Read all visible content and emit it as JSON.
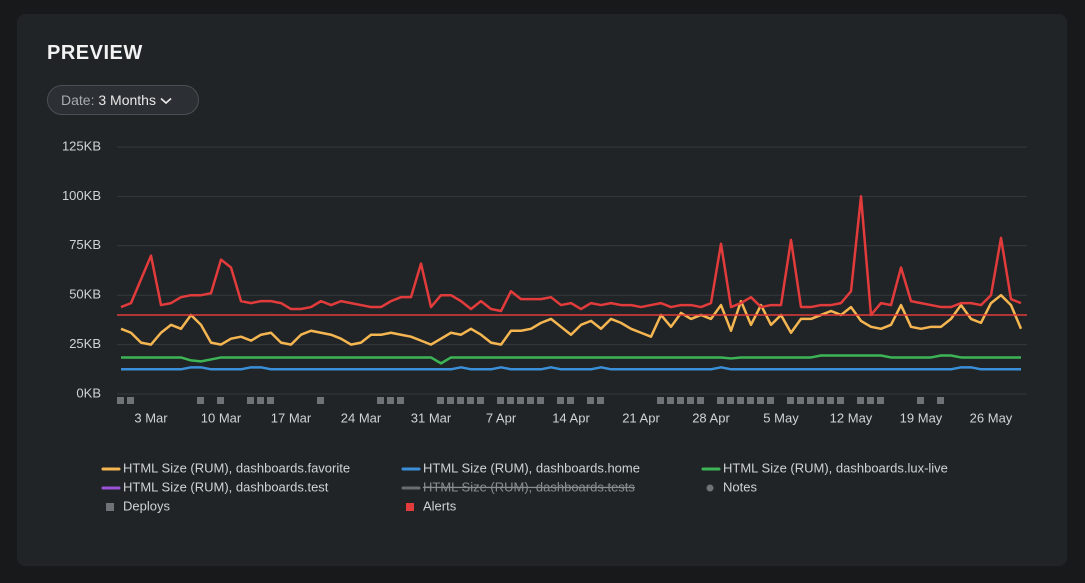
{
  "header": {
    "title": "PREVIEW",
    "date_label": "Date:",
    "date_value": "3 Months"
  },
  "chart_data": {
    "type": "line",
    "categories": [
      null,
      null,
      null,
      "3 Mar",
      null,
      null,
      null,
      null,
      null,
      null,
      "10 Mar",
      null,
      null,
      null,
      null,
      null,
      null,
      "17 Mar",
      null,
      null,
      null,
      null,
      null,
      null,
      "24 Mar",
      null,
      null,
      null,
      null,
      null,
      null,
      "31 Mar",
      null,
      null,
      null,
      null,
      null,
      null,
      "7 Apr",
      null,
      null,
      null,
      null,
      null,
      null,
      "14 Apr",
      null,
      null,
      null,
      null,
      null,
      null,
      "21 Apr",
      null,
      null,
      null,
      null,
      null,
      null,
      "28 Apr",
      null,
      null,
      null,
      null,
      null,
      null,
      "5 May",
      null,
      null,
      null,
      null,
      null,
      null,
      "12 May",
      null,
      null,
      null,
      null,
      null,
      null,
      "19 May",
      null,
      null,
      null,
      null,
      null,
      null,
      "26 May",
      null,
      null,
      null
    ],
    "ylim": [
      0,
      125
    ],
    "yticks": [
      {
        "value": 0,
        "label": "0KB"
      },
      {
        "value": 25,
        "label": "25KB"
      },
      {
        "value": 50,
        "label": "50KB"
      },
      {
        "value": 75,
        "label": "75KB"
      },
      {
        "value": 100,
        "label": "100KB"
      },
      {
        "value": 125,
        "label": "125KB"
      }
    ],
    "grid": true,
    "alert_threshold": 40,
    "alert_color": "#e23b3b",
    "series": [
      {
        "name": "HTML Size (RUM), dashboards.favorite",
        "color": "#f5b651",
        "values": [
          33,
          31,
          26,
          25,
          31,
          35,
          33,
          40,
          35,
          26,
          25,
          28,
          29,
          27,
          30,
          31,
          26,
          25,
          30,
          32,
          31,
          30,
          28,
          25,
          26,
          30,
          30,
          31,
          30,
          29,
          27,
          25,
          28,
          31,
          30,
          33,
          30,
          26,
          25,
          32,
          32,
          33,
          36,
          38,
          34,
          30,
          35,
          37,
          33,
          38,
          36,
          33,
          31,
          29,
          40,
          34,
          41,
          38,
          40,
          38,
          45,
          32,
          47,
          35,
          45,
          35,
          40,
          31,
          38,
          38,
          40,
          42,
          40,
          44,
          37,
          34,
          33,
          35,
          45,
          34,
          33,
          34,
          34,
          38,
          45,
          38,
          36,
          46,
          50,
          45,
          33
        ]
      },
      {
        "name": "HTML Size (RUM), dashboards.home",
        "color": "#3b8fd8",
        "values": [
          12.5,
          12.5,
          12.5,
          12.5,
          12.5,
          12.5,
          12.5,
          13.5,
          13.5,
          12.5,
          12.5,
          12.5,
          12.5,
          13.5,
          13.5,
          12.5,
          12.5,
          12.5,
          12.5,
          12.5,
          12.5,
          12.5,
          12.5,
          12.5,
          12.5,
          12.5,
          12.5,
          12.5,
          12.5,
          12.5,
          12.5,
          12.5,
          12.5,
          12.5,
          13.5,
          12.5,
          12.5,
          12.5,
          13.5,
          12.5,
          12.5,
          12.5,
          12.5,
          13.5,
          12.5,
          12.5,
          12.5,
          12.5,
          13.5,
          12.5,
          12.5,
          12.5,
          12.5,
          12.5,
          12.5,
          12.5,
          12.5,
          12.5,
          12.5,
          12.5,
          13.5,
          12.5,
          12.5,
          12.5,
          12.5,
          12.5,
          12.5,
          12.5,
          12.5,
          12.5,
          12.5,
          12.5,
          12.5,
          12.5,
          12.5,
          12.5,
          12.5,
          12.5,
          12.5,
          12.5,
          12.5,
          12.5,
          12.5,
          12.5,
          13.5,
          13.5,
          12.5,
          12.5,
          12.5,
          12.5,
          12.5
        ]
      },
      {
        "name": "HTML Size (RUM), dashboards.lux-live",
        "color": "#3db556",
        "values": [
          18.5,
          18.5,
          18.5,
          18.5,
          18.5,
          18.5,
          18.5,
          17,
          16.5,
          17.5,
          18.5,
          18.5,
          18.5,
          18.5,
          18.5,
          18.5,
          18.5,
          18.5,
          18.5,
          18.5,
          18.5,
          18.5,
          18.5,
          18.5,
          18.5,
          18.5,
          18.5,
          18.5,
          18.5,
          18.5,
          18.5,
          18.5,
          15.5,
          18.5,
          18.5,
          18.5,
          18.5,
          18.5,
          18.5,
          18.5,
          18.5,
          18.5,
          18.5,
          18.5,
          18.5,
          18.5,
          18.5,
          18.5,
          18.5,
          18.5,
          18.5,
          18.5,
          18.5,
          18.5,
          18.5,
          18.5,
          18.5,
          18.5,
          18.5,
          18.5,
          18.5,
          18,
          18.5,
          18.5,
          18.5,
          18.5,
          18.5,
          18.5,
          18.5,
          18.5,
          19.5,
          19.5,
          19.5,
          19.5,
          19.5,
          19.5,
          19.5,
          18.5,
          18.5,
          18.5,
          18.5,
          18.5,
          19.5,
          19.5,
          18.5,
          18.5,
          18.5,
          18.5,
          18.5,
          18.5,
          18.5
        ]
      },
      {
        "name": "HTML Size (RUM), dashboards.test",
        "color": "#9b52d8",
        "alert": true,
        "values": [
          44,
          46,
          58,
          70,
          45,
          46,
          49,
          50,
          50,
          51,
          68,
          64,
          47,
          46,
          47,
          47,
          46,
          43,
          43,
          44,
          47,
          45,
          47,
          46,
          45,
          44,
          44,
          47,
          49,
          49,
          66,
          44,
          50,
          50,
          47,
          43,
          47,
          43,
          42,
          52,
          48,
          48,
          48,
          49,
          45,
          46,
          43,
          46,
          45,
          46,
          45,
          45,
          44,
          45,
          46,
          44,
          45,
          45,
          44,
          46,
          76,
          44,
          46,
          49,
          44,
          45,
          45,
          78,
          44,
          44,
          45,
          45,
          46,
          52,
          100,
          40,
          46,
          45,
          64,
          47,
          46,
          45,
          44,
          44,
          46,
          46,
          45,
          50,
          79,
          48,
          46
        ]
      },
      {
        "name": "HTML Size (RUM), dashboards.tests",
        "color": "#6a6e72",
        "hidden": true
      }
    ],
    "markers": [
      {
        "name": "Notes",
        "color": "#6f7377",
        "shape": "dot"
      },
      {
        "name": "Deploys",
        "color": "#6f7377",
        "shape": "square",
        "days": [
          0,
          1,
          8,
          10,
          13,
          14,
          15,
          20,
          26,
          27,
          28,
          32,
          33,
          34,
          35,
          36,
          38,
          39,
          40,
          41,
          42,
          44,
          45,
          47,
          48,
          54,
          55,
          56,
          57,
          58,
          60,
          61,
          62,
          63,
          64,
          65,
          67,
          68,
          69,
          70,
          71,
          72,
          74,
          75,
          76,
          80,
          82
        ]
      },
      {
        "name": "Alerts",
        "color": "#e23b3b",
        "shape": "square"
      }
    ]
  }
}
